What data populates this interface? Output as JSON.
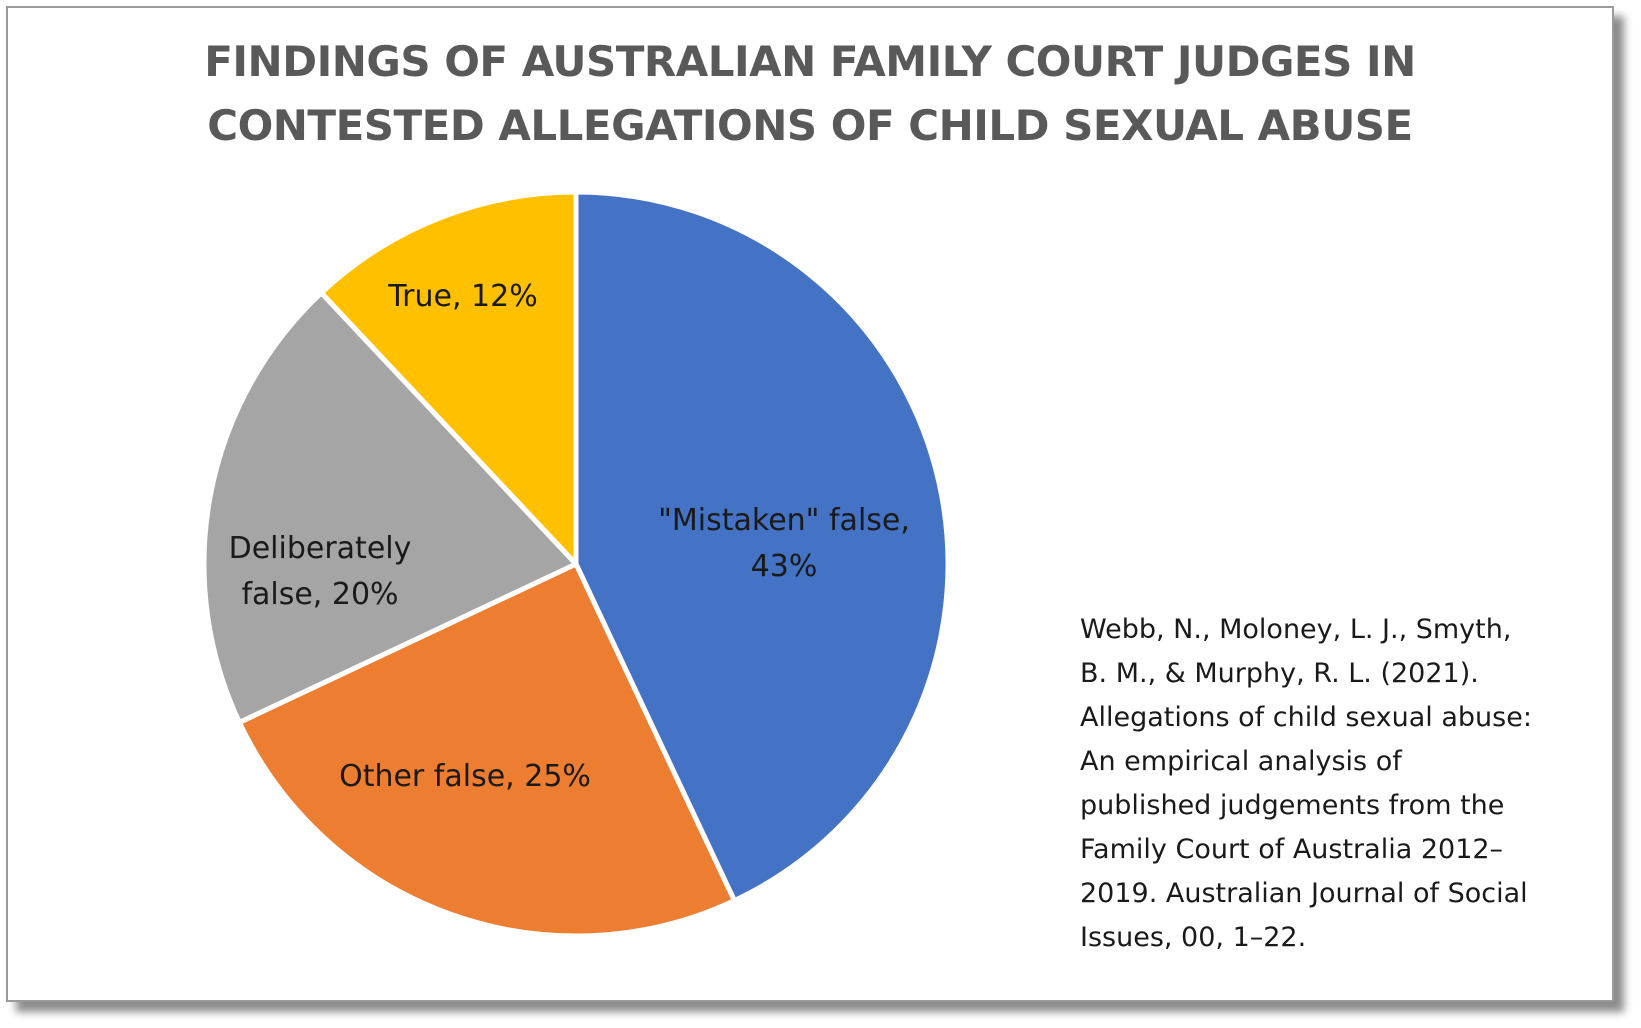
{
  "chart_data": {
    "type": "pie",
    "title_lines": [
      "FINDINGS OF AUSTRALIAN FAMILY COURT JUDGES IN",
      "CONTESTED ALLEGATIONS OF CHILD SEXUAL ABUSE"
    ],
    "slices": [
      {
        "category": "\"Mistaken\" false",
        "value": 43,
        "label_lines": [
          "\"Mistaken\" false,",
          "43%"
        ],
        "color": "#4472C4"
      },
      {
        "category": "Other false",
        "value": 25,
        "label_lines": [
          "Other false, 25%"
        ],
        "color": "#ED7D31"
      },
      {
        "category": "Deliberately false",
        "value": 20,
        "label_lines": [
          "Deliberately",
          "false, 20%"
        ],
        "color": "#A5A5A5"
      },
      {
        "category": "True",
        "value": 12,
        "label_lines": [
          "True, 12%"
        ],
        "color": "#FFC000"
      }
    ],
    "start_angle": "12 o'clock, clockwise",
    "legend": "none",
    "slice_border_color": "#ffffff"
  },
  "citation_lines": [
    "Webb, N., Moloney, L. J., Smyth,",
    "B. M., & Murphy, R. L. (2021).",
    "Allegations of child sexual abuse:",
    "An empirical analysis of",
    "published judgements from the",
    "Family Court of Australia 2012–",
    "2019. Australian Journal of Social",
    "Issues, 00, 1–22."
  ]
}
